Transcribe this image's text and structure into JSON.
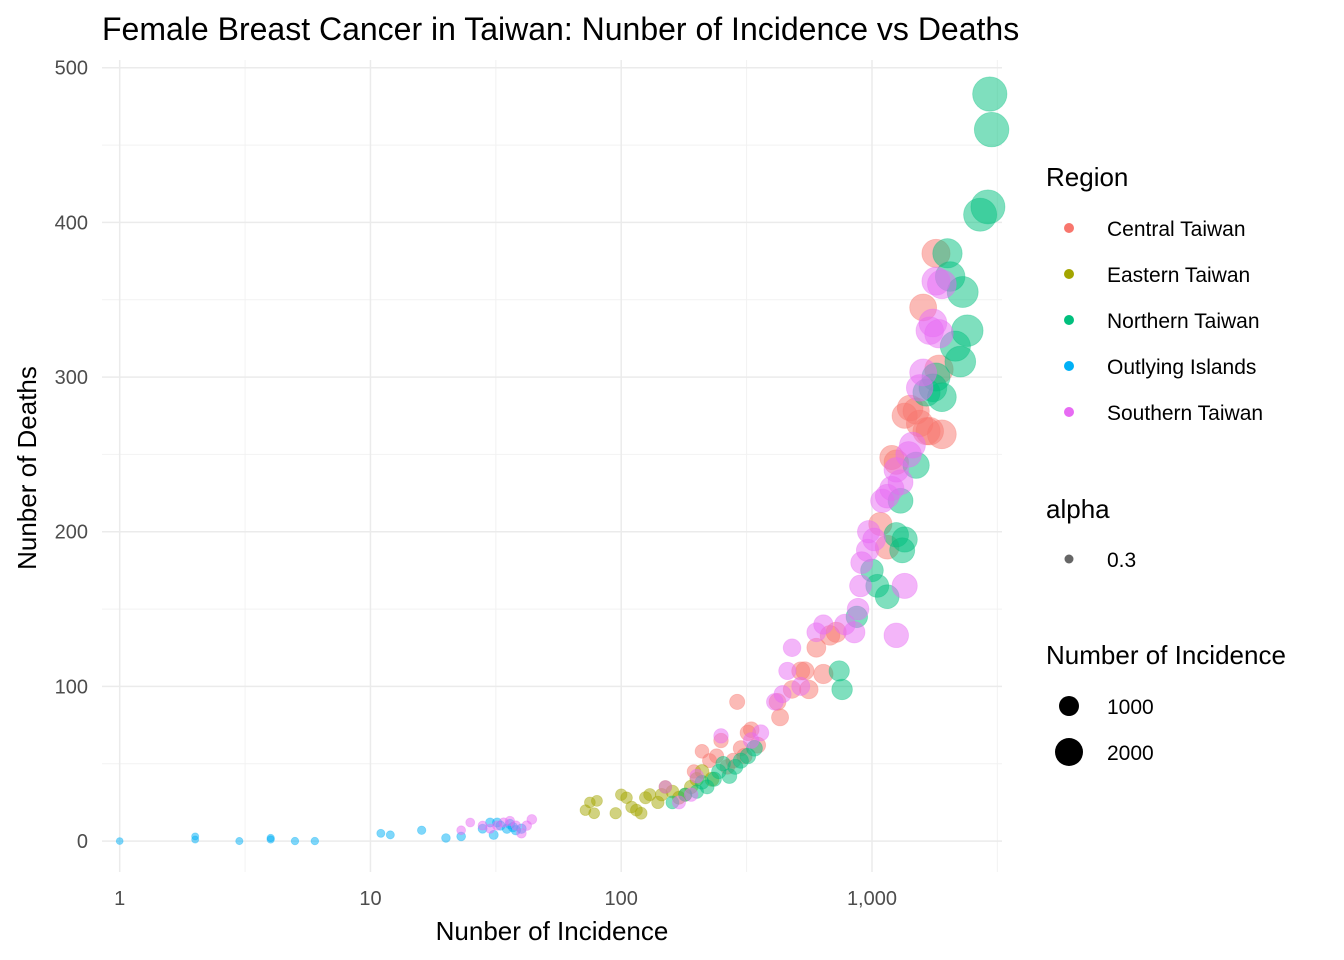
{
  "chart_data": {
    "type": "scatter",
    "title": "Female Breast Cancer in Taiwan: Nunber of Incidence vs Deaths",
    "xlabel": "Nunber of Incidence",
    "ylabel": "Nunber of Deaths",
    "x_scale": "log10",
    "xlim": [
      0.85,
      3300
    ],
    "ylim": [
      -20,
      505
    ],
    "x_ticks": [
      1,
      10,
      100,
      1000
    ],
    "x_tick_labels": [
      "1",
      "10",
      "100",
      "1,000"
    ],
    "y_ticks": [
      0,
      100,
      200,
      300,
      400,
      500
    ],
    "y_tick_labels": [
      "0",
      "100",
      "200",
      "300",
      "400",
      "500"
    ],
    "grid": true,
    "legend_position": "right",
    "point_alpha": 0.5,
    "series": [
      {
        "name": "Central Taiwan",
        "color": "#F8766D",
        "points": [
          [
            195,
            45
          ],
          [
            210,
            58
          ],
          [
            225,
            52
          ],
          [
            240,
            55
          ],
          [
            250,
            65
          ],
          [
            265,
            48
          ],
          [
            280,
            52
          ],
          [
            290,
            90
          ],
          [
            300,
            60
          ],
          [
            310,
            55
          ],
          [
            320,
            70
          ],
          [
            330,
            72
          ],
          [
            350,
            62
          ],
          [
            420,
            90
          ],
          [
            430,
            80
          ],
          [
            480,
            98
          ],
          [
            520,
            110
          ],
          [
            540,
            110
          ],
          [
            560,
            98
          ],
          [
            600,
            125
          ],
          [
            640,
            108
          ],
          [
            680,
            133
          ],
          [
            720,
            135
          ],
          [
            1080,
            205
          ],
          [
            1150,
            190
          ],
          [
            1200,
            248
          ],
          [
            1250,
            245
          ],
          [
            1350,
            275
          ],
          [
            1420,
            280
          ],
          [
            1500,
            278
          ],
          [
            1550,
            270
          ],
          [
            1600,
            345
          ],
          [
            1650,
            265
          ],
          [
            1700,
            265
          ],
          [
            1800,
            380
          ],
          [
            1850,
            305
          ],
          [
            1900,
            263
          ]
        ]
      },
      {
        "name": "Eastern Taiwan",
        "color": "#A3A500",
        "points": [
          [
            72,
            20
          ],
          [
            75,
            25
          ],
          [
            78,
            18
          ],
          [
            80,
            26
          ],
          [
            95,
            18
          ],
          [
            100,
            30
          ],
          [
            105,
            28
          ],
          [
            110,
            22
          ],
          [
            115,
            20
          ],
          [
            120,
            18
          ],
          [
            125,
            28
          ],
          [
            130,
            30
          ],
          [
            140,
            25
          ],
          [
            145,
            30
          ],
          [
            150,
            35
          ],
          [
            160,
            32
          ],
          [
            170,
            28
          ],
          [
            180,
            30
          ],
          [
            190,
            35
          ],
          [
            200,
            40
          ],
          [
            210,
            45
          ],
          [
            230,
            40
          ]
        ]
      },
      {
        "name": "Northern Taiwan",
        "color": "#00BF7D",
        "points": [
          [
            160,
            25
          ],
          [
            180,
            30
          ],
          [
            200,
            32
          ],
          [
            210,
            38
          ],
          [
            220,
            35
          ],
          [
            235,
            40
          ],
          [
            245,
            45
          ],
          [
            255,
            50
          ],
          [
            270,
            42
          ],
          [
            285,
            48
          ],
          [
            300,
            52
          ],
          [
            320,
            55
          ],
          [
            340,
            60
          ],
          [
            740,
            110
          ],
          [
            760,
            98
          ],
          [
            870,
            145
          ],
          [
            1000,
            175
          ],
          [
            1050,
            165
          ],
          [
            1150,
            158
          ],
          [
            1250,
            198
          ],
          [
            1300,
            220
          ],
          [
            1320,
            188
          ],
          [
            1350,
            195
          ],
          [
            1500,
            243
          ],
          [
            1650,
            290
          ],
          [
            1750,
            293
          ],
          [
            1800,
            300
          ],
          [
            1900,
            287
          ],
          [
            2000,
            380
          ],
          [
            2050,
            365
          ],
          [
            2150,
            320
          ],
          [
            2250,
            310
          ],
          [
            2300,
            355
          ],
          [
            2400,
            330
          ],
          [
            2700,
            405
          ],
          [
            2900,
            410
          ],
          [
            2950,
            483
          ],
          [
            3000,
            460
          ]
        ]
      },
      {
        "name": "Outlying Islands",
        "color": "#00B0F6",
        "points": [
          [
            1,
            0
          ],
          [
            2,
            1
          ],
          [
            2,
            3
          ],
          [
            3,
            0
          ],
          [
            4,
            1
          ],
          [
            4,
            2
          ],
          [
            5,
            0
          ],
          [
            6,
            0
          ],
          [
            11,
            5
          ],
          [
            12,
            4
          ],
          [
            16,
            7
          ],
          [
            20,
            2
          ],
          [
            23,
            3
          ],
          [
            28,
            8
          ],
          [
            30,
            12
          ],
          [
            31,
            4
          ],
          [
            32,
            12
          ],
          [
            33,
            10
          ],
          [
            35,
            8
          ],
          [
            36,
            11
          ],
          [
            37,
            9
          ],
          [
            38,
            7
          ],
          [
            40,
            8
          ]
        ]
      },
      {
        "name": "Southern Taiwan",
        "color": "#E76BF3",
        "points": [
          [
            23,
            7
          ],
          [
            25,
            12
          ],
          [
            28,
            10
          ],
          [
            30,
            8
          ],
          [
            32,
            10
          ],
          [
            34,
            12
          ],
          [
            36,
            13
          ],
          [
            38,
            10
          ],
          [
            40,
            5
          ],
          [
            42,
            10
          ],
          [
            44,
            14
          ],
          [
            150,
            35
          ],
          [
            170,
            25
          ],
          [
            190,
            30
          ],
          [
            200,
            42
          ],
          [
            250,
            68
          ],
          [
            330,
            65
          ],
          [
            360,
            70
          ],
          [
            410,
            90
          ],
          [
            440,
            95
          ],
          [
            460,
            110
          ],
          [
            480,
            125
          ],
          [
            520,
            100
          ],
          [
            600,
            135
          ],
          [
            640,
            140
          ],
          [
            780,
            140
          ],
          [
            850,
            135
          ],
          [
            880,
            150
          ],
          [
            900,
            165
          ],
          [
            910,
            180
          ],
          [
            960,
            188
          ],
          [
            970,
            200
          ],
          [
            1020,
            195
          ],
          [
            1100,
            220
          ],
          [
            1150,
            223
          ],
          [
            1200,
            228
          ],
          [
            1250,
            240
          ],
          [
            1300,
            232
          ],
          [
            1350,
            165
          ],
          [
            1400,
            250
          ],
          [
            1450,
            256
          ],
          [
            1550,
            293
          ],
          [
            1600,
            303
          ],
          [
            1700,
            330
          ],
          [
            1750,
            335
          ],
          [
            1800,
            362
          ],
          [
            1850,
            328
          ],
          [
            1900,
            360
          ],
          [
            1250,
            133
          ]
        ]
      }
    ],
    "legends": {
      "color": {
        "title": "Region",
        "items": [
          {
            "label": "Central Taiwan",
            "color": "#F8766D"
          },
          {
            "label": "Eastern Taiwan",
            "color": "#A3A500"
          },
          {
            "label": "Northern Taiwan",
            "color": "#00BF7D"
          },
          {
            "label": "Outlying Islands",
            "color": "#00B0F6"
          },
          {
            "label": "Southern Taiwan",
            "color": "#E76BF3"
          }
        ]
      },
      "alpha": {
        "title": "alpha",
        "items": [
          {
            "label": "0.3"
          }
        ]
      },
      "size": {
        "title": "Number of Incidence",
        "items": [
          {
            "label": "1000",
            "value": 1000
          },
          {
            "label": "2000",
            "value": 2000
          }
        ]
      }
    }
  }
}
